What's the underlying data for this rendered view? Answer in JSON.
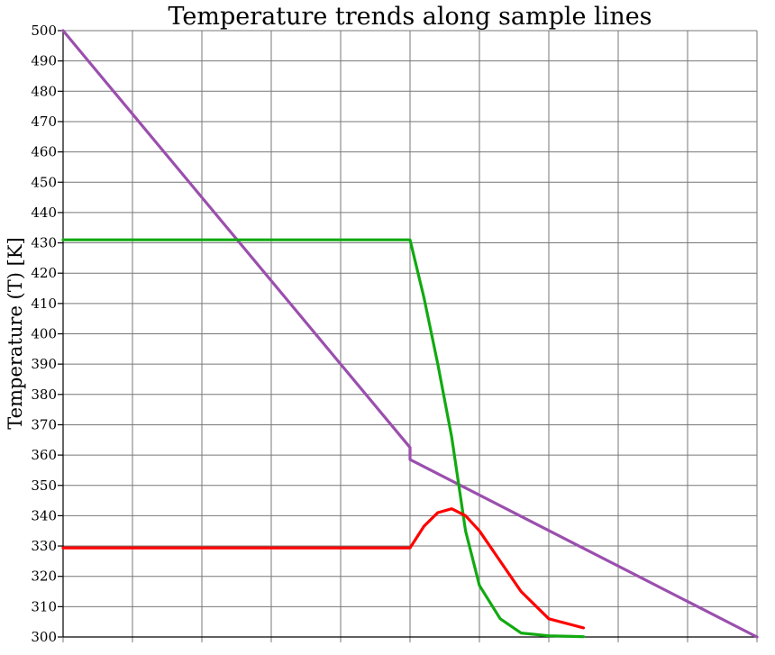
{
  "chart_data": {
    "type": "line",
    "title": "Temperature trends along sample lines",
    "xlabel": "",
    "ylabel": "Temperature (T) [K]",
    "ylim": [
      300,
      500
    ],
    "xlim": [
      0,
      10
    ],
    "y_ticks": [
      "300",
      "310",
      "320",
      "330",
      "340",
      "350",
      "360",
      "370",
      "380",
      "390",
      "400",
      "410",
      "420",
      "430",
      "440",
      "450",
      "460",
      "470",
      "480",
      "490",
      "500"
    ],
    "grid": true,
    "legend": "none",
    "series": [
      {
        "color": "#9b4fae",
        "x": [
          0,
          5,
          5,
          10
        ],
        "y": [
          500,
          362.5,
          358.5,
          300
        ]
      },
      {
        "color": "#11aa11",
        "x": [
          0,
          2.5,
          5,
          5.2,
          5.4,
          5.6,
          5.8,
          6.0,
          6.3,
          6.6,
          7.0,
          7.5
        ],
        "y": [
          431,
          431,
          431,
          412,
          390,
          366,
          335,
          317,
          306,
          301.3,
          300.4,
          300.1
        ]
      },
      {
        "color": "#ff0000",
        "x": [
          0,
          2.5,
          5,
          5.2,
          5.4,
          5.6,
          5.8,
          6.0,
          6.3,
          6.6,
          7.0,
          7.5
        ],
        "y": [
          329.4,
          329.4,
          329.4,
          336.5,
          341,
          342.3,
          340,
          335,
          325,
          315,
          306,
          303
        ]
      }
    ]
  }
}
